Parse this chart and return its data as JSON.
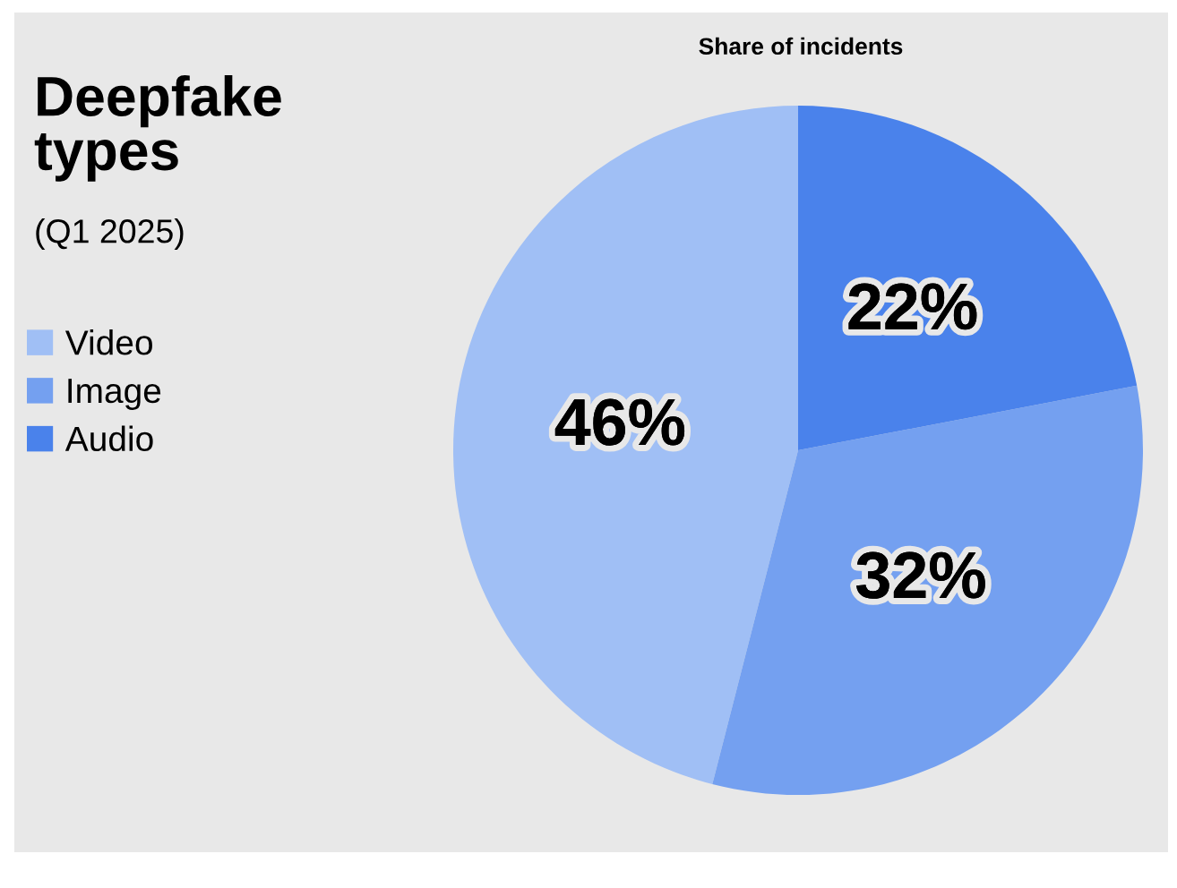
{
  "chart_data": {
    "type": "pie",
    "title": "Deepfake types",
    "subtitle": "(Q1 2025)",
    "annotations": [
      "Share of incidents"
    ],
    "categories": [
      "Video",
      "Image",
      "Audio"
    ],
    "values": [
      46,
      32,
      22
    ],
    "colors": [
      "#a0bff5",
      "#74a0f0",
      "#4a82eb"
    ],
    "value_labels": [
      "46%",
      "32%",
      "22%"
    ],
    "legend": "left"
  }
}
